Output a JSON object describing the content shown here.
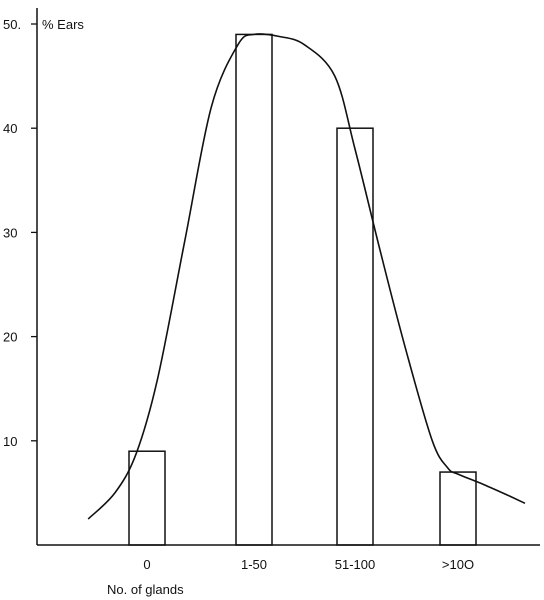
{
  "chart_data": {
    "type": "bar",
    "ylabel": "% Ears",
    "xlabel": "No. of glands",
    "categories": [
      "0",
      "1-50",
      "51-100",
      ">10O"
    ],
    "values": [
      9,
      49,
      40,
      7
    ],
    "yticks": [
      10,
      20,
      30,
      40,
      50
    ],
    "ytick_labels": [
      "10",
      "20",
      "30",
      "40",
      "50."
    ],
    "ylim": [
      0,
      52
    ],
    "grid": false,
    "curve": {
      "description_type": "smooth-fit",
      "x": [
        -0.55,
        -0.3,
        -0.1,
        0.1,
        0.35,
        0.6,
        0.85,
        1.0,
        1.25,
        1.5,
        1.8,
        2.0,
        2.25,
        2.5,
        2.75,
        2.9,
        3.0,
        3.25,
        3.5,
        3.65
      ],
      "y": [
        2.5,
        5.0,
        8.8,
        16.0,
        29.0,
        42.0,
        48.0,
        49.0,
        48.8,
        48.0,
        45.0,
        38.0,
        28.0,
        18.5,
        10.0,
        7.4,
        6.8,
        5.8,
        4.7,
        4.0
      ]
    },
    "colors": {
      "ink": "#111111",
      "bar_fill": "#ffffff"
    }
  }
}
